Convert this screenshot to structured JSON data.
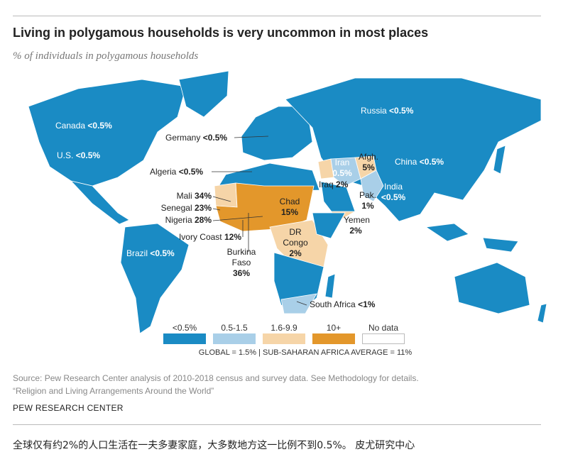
{
  "header": {
    "title": "Living in polygamous households is very uncommon in most places",
    "subtitle": "% of individuals in polygamous households"
  },
  "labels": [
    {
      "name": "Canada",
      "value": "<0.5%"
    },
    {
      "name": "U.S.",
      "value": "<0.5%"
    },
    {
      "name": "Germany",
      "value": "<0.5%"
    },
    {
      "name": "Algeria",
      "value": "<0.5%"
    },
    {
      "name": "Mali",
      "value": "34%"
    },
    {
      "name": "Senegal",
      "value": "23%"
    },
    {
      "name": "Nigeria",
      "value": "28%"
    },
    {
      "name": "Ivory Coast",
      "value": "12%"
    },
    {
      "name": "Burkina Faso",
      "value": "36%"
    },
    {
      "name": "Chad",
      "value": "15%"
    },
    {
      "name": "DR Congo",
      "value": "2%"
    },
    {
      "name": "Brazil",
      "value": "<0.5%"
    },
    {
      "name": "Russia",
      "value": "<0.5%"
    },
    {
      "name": "Iran",
      "value": "0.5%"
    },
    {
      "name": "Afgh.",
      "value": "5%"
    },
    {
      "name": "Iraq",
      "value": "2%"
    },
    {
      "name": "Pak.",
      "value": "1%"
    },
    {
      "name": "India",
      "value": "<0.5%"
    },
    {
      "name": "China",
      "value": "<0.5%"
    },
    {
      "name": "Yemen",
      "value": "2%"
    },
    {
      "name": "South Africa",
      "value": "<1%"
    }
  ],
  "legend": {
    "items": [
      {
        "label": "<0.5%",
        "color": "#1a8bc4"
      },
      {
        "label": "0.5-1.5",
        "color": "#a9cfe8"
      },
      {
        "label": "1.6-9.9",
        "color": "#f6d5a8"
      },
      {
        "label": "10+",
        "color": "#e3972b"
      },
      {
        "label": "No data",
        "color": "#ffffff"
      }
    ],
    "note": "GLOBAL = 1.5%  |  SUB-SAHARAN AFRICA AVERAGE = 11%"
  },
  "footer": {
    "source": "Source: Pew Research Center analysis of 2010-2018 census and survey data. See Methodology for details.",
    "report": "“Religion and Living Arrangements Around the World”",
    "organization": "PEW RESEARCH CENTER"
  },
  "caption": "全球仅有约2%的人口生活在一夫多妻家庭，大多数地方这一比例不到0.5%。 皮尤研究中心"
}
